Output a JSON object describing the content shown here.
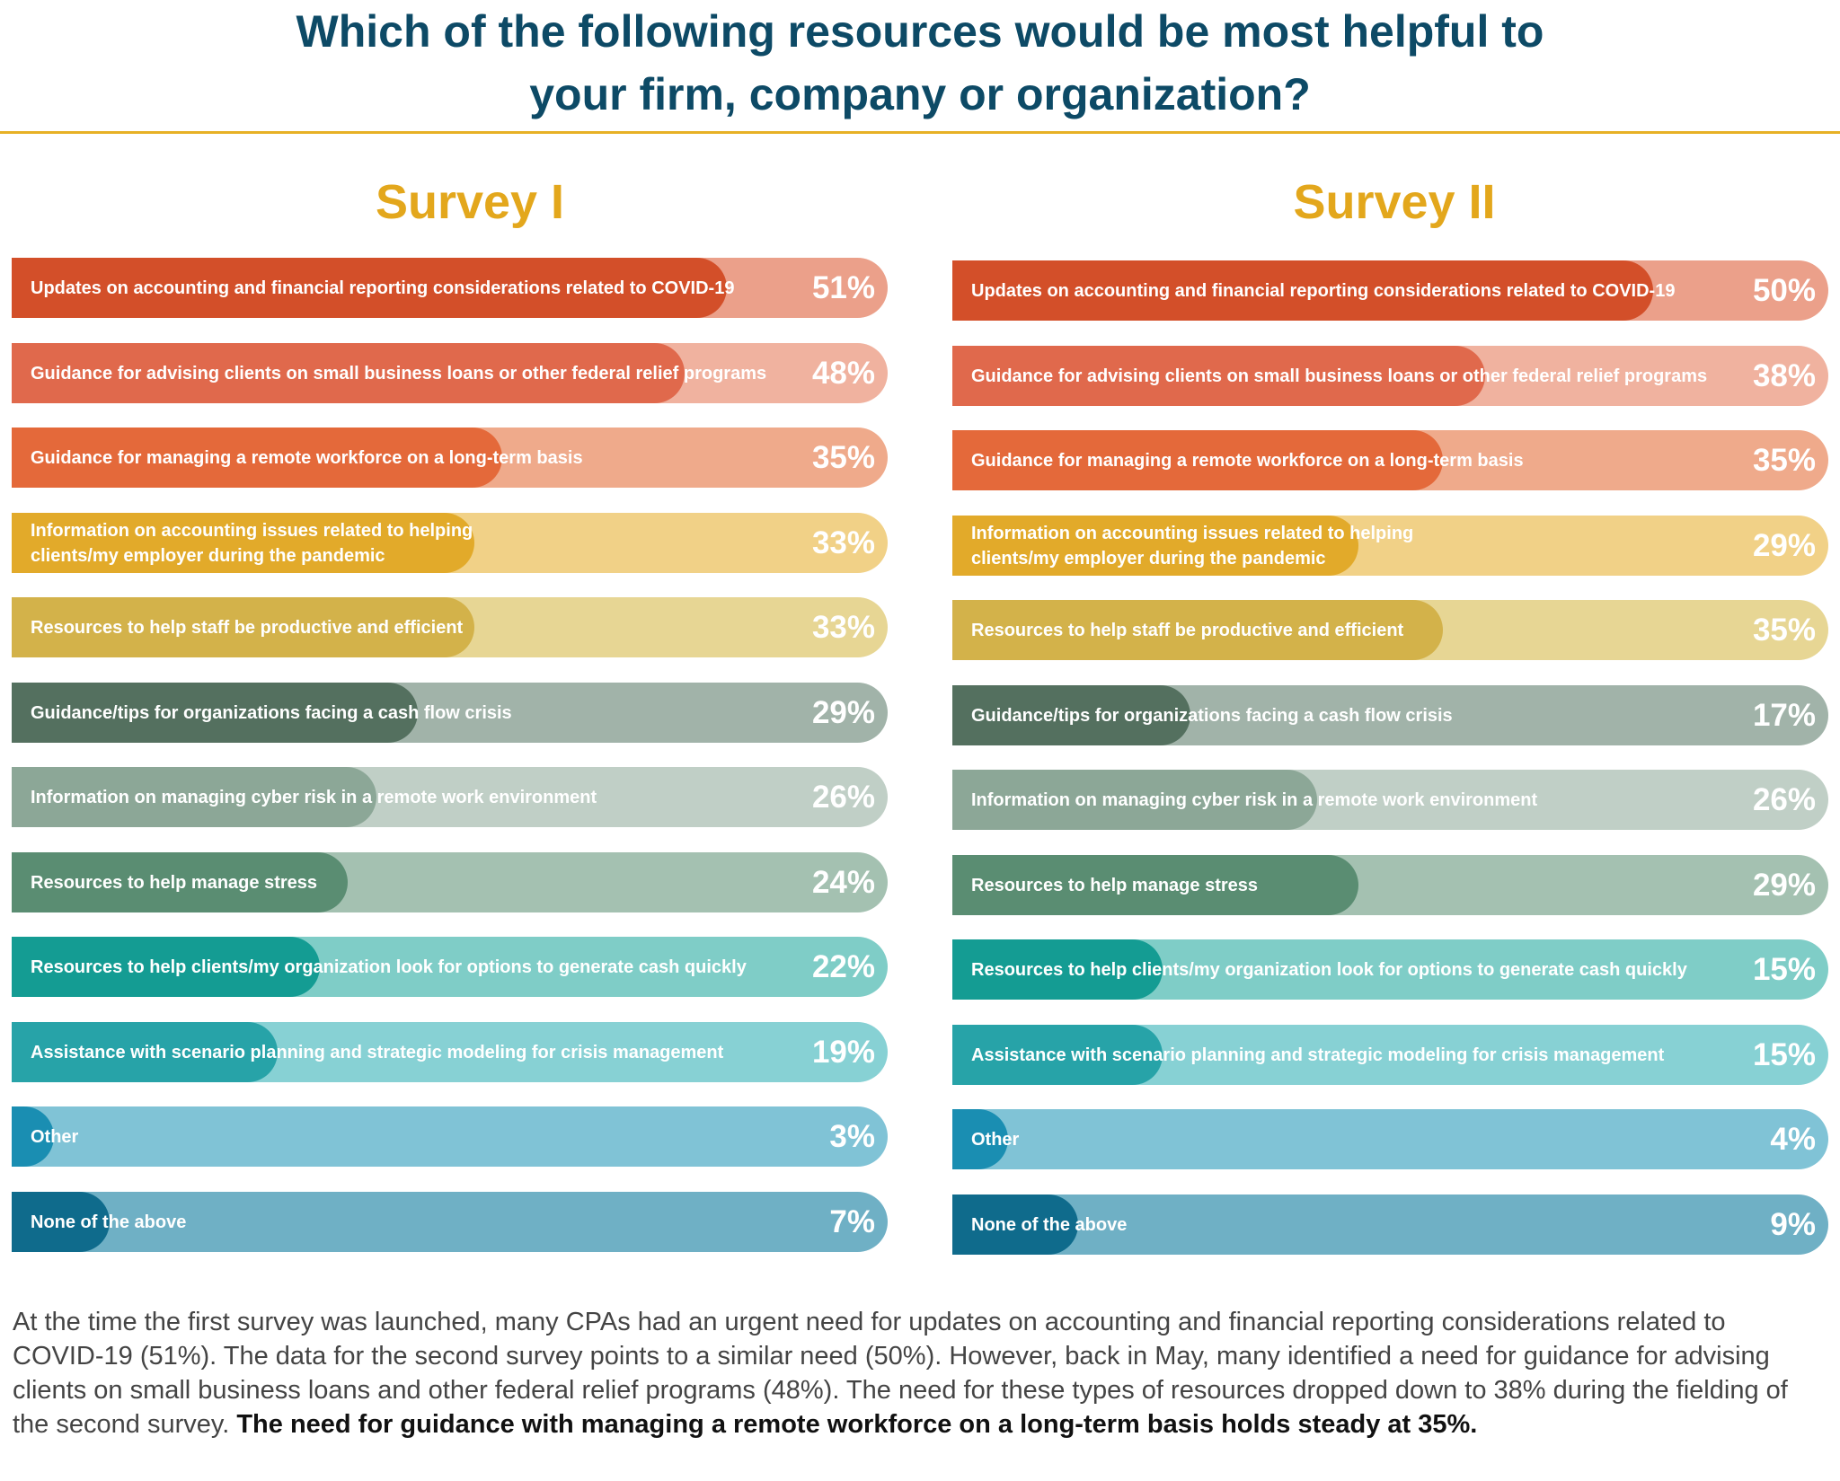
{
  "title": {
    "line1": "Which of the following resources would be most helpful to",
    "line2": "your firm, company or organization?"
  },
  "colors": {
    "title": "#0d4a66",
    "rule": "#e7b125",
    "survey_title": "#e3a71c"
  },
  "chart_data": [
    {
      "type": "bar",
      "orientation": "horizontal",
      "title": "Survey I",
      "unit": "%",
      "xlim": [
        0,
        100
      ],
      "categories": [
        "Updates on accounting and financial reporting considerations related to COVID-19",
        "Guidance for advising clients on small business loans or other federal relief programs",
        "Guidance for managing a remote workforce on a long-term basis",
        "Information on accounting issues related to helping\nclients/my employer during the pandemic",
        "Resources to help staff be productive and efficient",
        "Guidance/tips for organizations facing a cash flow crisis",
        "Information on managing cyber risk in a remote work environment",
        "Resources to help manage stress",
        "Resources to help clients/my organization look for options to generate cash quickly",
        "Assistance with scenario planning and strategic modeling for crisis management",
        "Other",
        "None of the above"
      ],
      "values": [
        51,
        48,
        35,
        33,
        33,
        29,
        26,
        24,
        22,
        19,
        3,
        7
      ],
      "value_labels": [
        "51%",
        "48%",
        "35%",
        "33%",
        "33%",
        "29%",
        "26%",
        "24%",
        "22%",
        "19%",
        "3%",
        "7%"
      ]
    },
    {
      "type": "bar",
      "orientation": "horizontal",
      "title": "Survey II",
      "unit": "%",
      "xlim": [
        0,
        100
      ],
      "categories": [
        "Updates on accounting and financial reporting considerations related to COVID-19",
        "Guidance for advising clients on small business loans or other federal relief programs",
        "Guidance for managing a remote workforce on a long-term basis",
        "Information on accounting issues related to helping\nclients/my employer during the pandemic",
        "Resources to help staff be productive and efficient",
        "Guidance/tips for organizations facing a cash flow crisis",
        "Information on managing cyber risk in a remote work environment",
        "Resources to help manage stress",
        "Resources to help clients/my organization look for options to generate cash quickly",
        "Assistance with scenario planning and strategic modeling for crisis management",
        "Other",
        "None of the above"
      ],
      "values": [
        50,
        38,
        35,
        29,
        35,
        17,
        26,
        29,
        15,
        15,
        4,
        9
      ],
      "value_labels": [
        "50%",
        "38%",
        "35%",
        "29%",
        "35%",
        "17%",
        "26%",
        "29%",
        "15%",
        "15%",
        "4%",
        "9%"
      ]
    }
  ],
  "row_colors": [
    {
      "dark": "#d34f29",
      "light": "#eba08a"
    },
    {
      "dark": "#e0694c",
      "light": "#f0b29f"
    },
    {
      "dark": "#e4693a",
      "light": "#efaa8b"
    },
    {
      "dark": "#e2aa2a",
      "light": "#f1d187"
    },
    {
      "dark": "#d3b24a",
      "light": "#e7d694"
    },
    {
      "dark": "#54705f",
      "light": "#a1b3a9"
    },
    {
      "dark": "#8ca797",
      "light": "#c0cfc6"
    },
    {
      "dark": "#5a8d72",
      "light": "#a4c1b1"
    },
    {
      "dark": "#149c93",
      "light": "#7fcdc7"
    },
    {
      "dark": "#27a3a8",
      "light": "#87d1d4"
    },
    {
      "dark": "#1a8eb2",
      "light": "#80c3d6"
    },
    {
      "dark": "#0f6b8c",
      "light": "#6fb0c5"
    }
  ],
  "footer": {
    "text": "At the time the first survey was launched, many CPAs had an urgent need for updates on accounting and financial reporting considerations related to COVID-19 (51%). The data for the second survey points to a similar need (50%). However, back in May, many identified a need for guidance for advising clients on small business loans and other federal relief programs (48%). The need for these types of resources dropped down to 38% during the fielding of the second survey. ",
    "bold": "The need for guidance with managing a remote workforce on a long-term basis holds steady at 35%."
  }
}
